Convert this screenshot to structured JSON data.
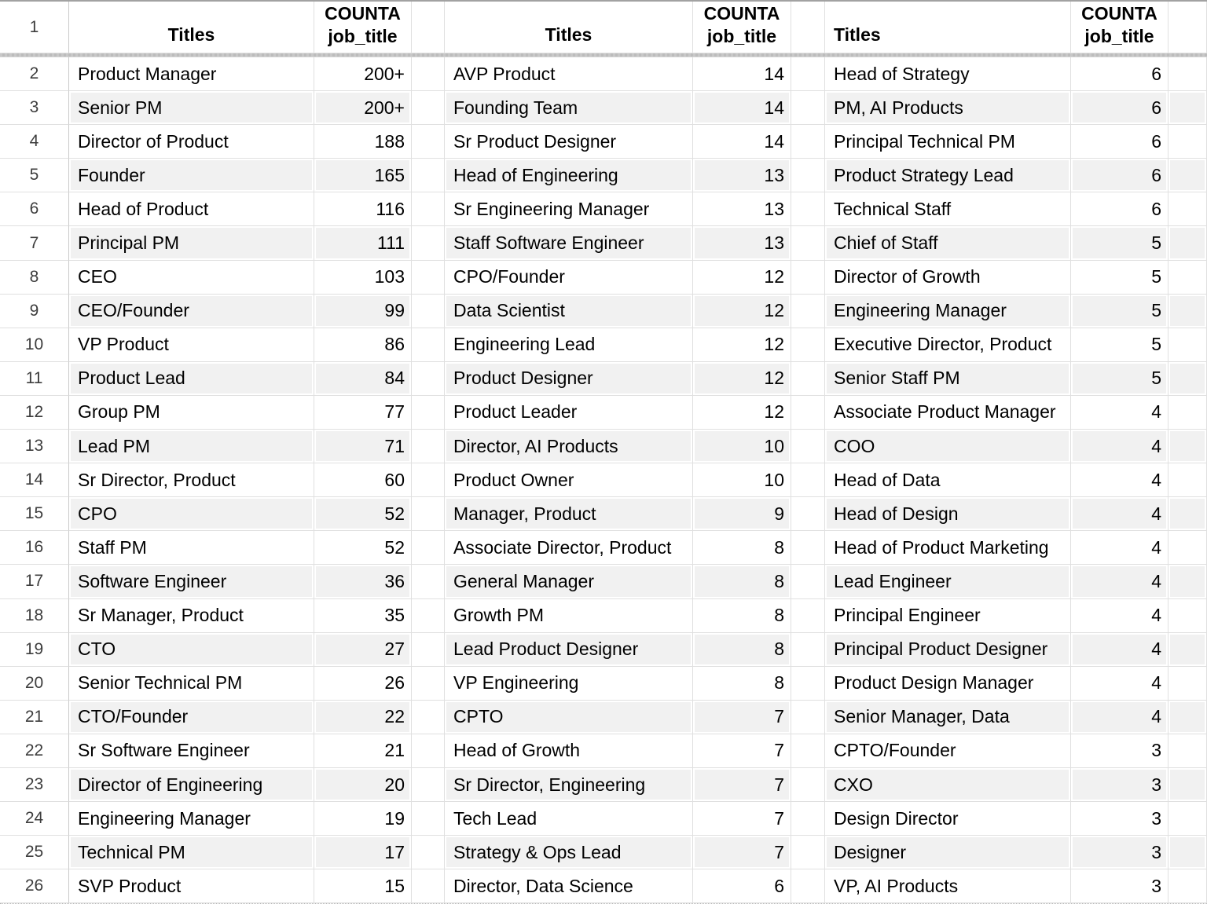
{
  "sheet": {
    "header": {
      "titles": "Titles",
      "count": "COUNTA\njob_title"
    },
    "row_numbers": [
      1,
      2,
      3,
      4,
      5,
      6,
      7,
      8,
      9,
      10,
      11,
      12,
      13,
      14,
      15,
      16,
      17,
      18,
      19,
      20,
      21,
      22,
      23,
      24,
      25,
      26
    ],
    "colors": {
      "band": "#f1f1f1",
      "gridline": "#e0e0e0",
      "freeze_bar": "#c3c3c3",
      "text": "#000000",
      "row_number_text": "#3d3d3d"
    },
    "groups": [
      {
        "rows": [
          {
            "title": "Product Manager",
            "count": "200+"
          },
          {
            "title": "Senior PM",
            "count": "200+"
          },
          {
            "title": "Director of Product",
            "count": "188"
          },
          {
            "title": "Founder",
            "count": "165"
          },
          {
            "title": "Head of Product",
            "count": "116"
          },
          {
            "title": "Principal PM",
            "count": "111"
          },
          {
            "title": "CEO",
            "count": "103"
          },
          {
            "title": "CEO/Founder",
            "count": "99"
          },
          {
            "title": "VP Product",
            "count": "86"
          },
          {
            "title": "Product Lead",
            "count": "84"
          },
          {
            "title": "Group PM",
            "count": "77"
          },
          {
            "title": "Lead PM",
            "count": "71"
          },
          {
            "title": "Sr Director, Product",
            "count": "60"
          },
          {
            "title": "CPO",
            "count": "52"
          },
          {
            "title": "Staff PM",
            "count": "52"
          },
          {
            "title": "Software Engineer",
            "count": "36"
          },
          {
            "title": "Sr Manager, Product",
            "count": "35"
          },
          {
            "title": "CTO",
            "count": "27"
          },
          {
            "title": "Senior Technical PM",
            "count": "26"
          },
          {
            "title": "CTO/Founder",
            "count": "22"
          },
          {
            "title": "Sr Software Engineer",
            "count": "21"
          },
          {
            "title": "Director of Engineering",
            "count": "20"
          },
          {
            "title": "Engineering Manager",
            "count": "19"
          },
          {
            "title": "Technical PM",
            "count": "17"
          },
          {
            "title": "SVP Product",
            "count": "15"
          }
        ]
      },
      {
        "rows": [
          {
            "title": "AVP Product",
            "count": "14"
          },
          {
            "title": "Founding Team",
            "count": "14"
          },
          {
            "title": "Sr Product Designer",
            "count": "14"
          },
          {
            "title": "Head of Engineering",
            "count": "13"
          },
          {
            "title": "Sr Engineering Manager",
            "count": "13"
          },
          {
            "title": "Staff Software Engineer",
            "count": "13"
          },
          {
            "title": "CPO/Founder",
            "count": "12"
          },
          {
            "title": "Data Scientist",
            "count": "12"
          },
          {
            "title": "Engineering Lead",
            "count": "12"
          },
          {
            "title": "Product Designer",
            "count": "12"
          },
          {
            "title": "Product Leader",
            "count": "12"
          },
          {
            "title": "Director, AI Products",
            "count": "10"
          },
          {
            "title": "Product Owner",
            "count": "10"
          },
          {
            "title": "Manager, Product",
            "count": "9"
          },
          {
            "title": "Associate Director, Product",
            "count": "8"
          },
          {
            "title": "General Manager",
            "count": "8"
          },
          {
            "title": "Growth PM",
            "count": "8"
          },
          {
            "title": "Lead Product Designer",
            "count": "8"
          },
          {
            "title": "VP Engineering",
            "count": "8"
          },
          {
            "title": "CPTO",
            "count": "7"
          },
          {
            "title": "Head of Growth",
            "count": "7"
          },
          {
            "title": "Sr Director, Engineering",
            "count": "7"
          },
          {
            "title": "Tech Lead",
            "count": "7"
          },
          {
            "title": "Strategy & Ops Lead",
            "count": "7"
          },
          {
            "title": "Director, Data Science",
            "count": "6"
          }
        ]
      },
      {
        "rows": [
          {
            "title": "Head of Strategy",
            "count": "6"
          },
          {
            "title": "PM, AI Products",
            "count": "6"
          },
          {
            "title": "Principal Technical PM",
            "count": "6"
          },
          {
            "title": "Product Strategy Lead",
            "count": "6"
          },
          {
            "title": "Technical Staff",
            "count": "6"
          },
          {
            "title": "Chief of Staff",
            "count": "5"
          },
          {
            "title": "Director of Growth",
            "count": "5"
          },
          {
            "title": "Engineering Manager",
            "count": "5"
          },
          {
            "title": "Executive Director, Product",
            "count": "5"
          },
          {
            "title": "Senior Staff PM",
            "count": "5"
          },
          {
            "title": "Associate Product Manager",
            "count": "4"
          },
          {
            "title": "COO",
            "count": "4"
          },
          {
            "title": "Head of Data",
            "count": "4"
          },
          {
            "title": "Head of Design",
            "count": "4"
          },
          {
            "title": "Head of Product Marketing",
            "count": "4"
          },
          {
            "title": "Lead Engineer",
            "count": "4"
          },
          {
            "title": "Principal Engineer",
            "count": "4"
          },
          {
            "title": "Principal Product Designer",
            "count": "4"
          },
          {
            "title": "Product Design Manager",
            "count": "4"
          },
          {
            "title": "Senior Manager, Data",
            "count": "4"
          },
          {
            "title": "CPTO/Founder",
            "count": "3"
          },
          {
            "title": "CXO",
            "count": "3"
          },
          {
            "title": "Design Director",
            "count": "3"
          },
          {
            "title": "Designer",
            "count": "3"
          },
          {
            "title": "VP, AI Products",
            "count": "3"
          }
        ]
      }
    ]
  }
}
